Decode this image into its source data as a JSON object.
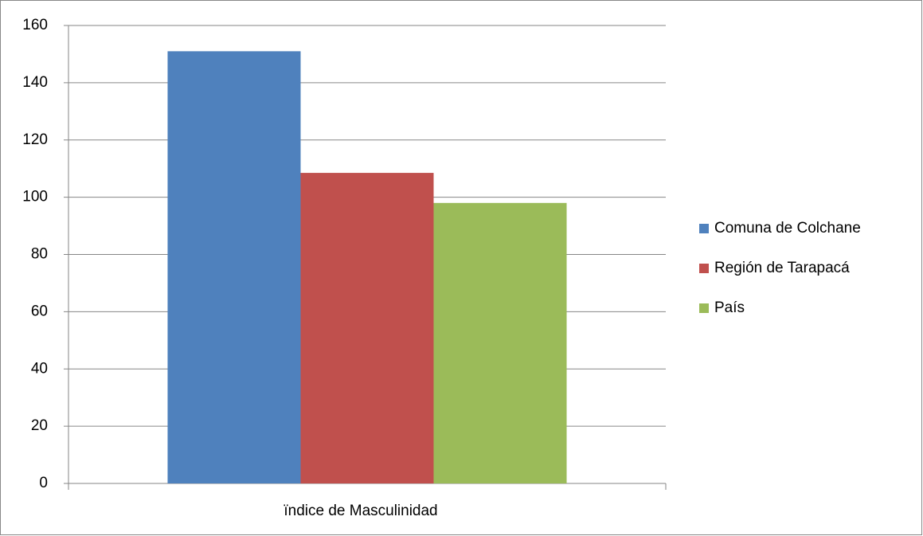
{
  "chart_data": {
    "type": "bar",
    "categories": [
      "ïndice de Masculinidad"
    ],
    "series": [
      {
        "name": "Comuna de Colchane",
        "color": "#4f81bd",
        "values": [
          151
        ]
      },
      {
        "name": "Región de Tarapacá",
        "color": "#c0504d",
        "values": [
          108.5
        ]
      },
      {
        "name": "País",
        "color": "#9bbb59",
        "values": [
          98
        ]
      }
    ],
    "ylim": [
      0,
      160
    ],
    "yticks": [
      0,
      20,
      40,
      60,
      80,
      100,
      120,
      140,
      160
    ],
    "grid": true,
    "legend": "right"
  }
}
